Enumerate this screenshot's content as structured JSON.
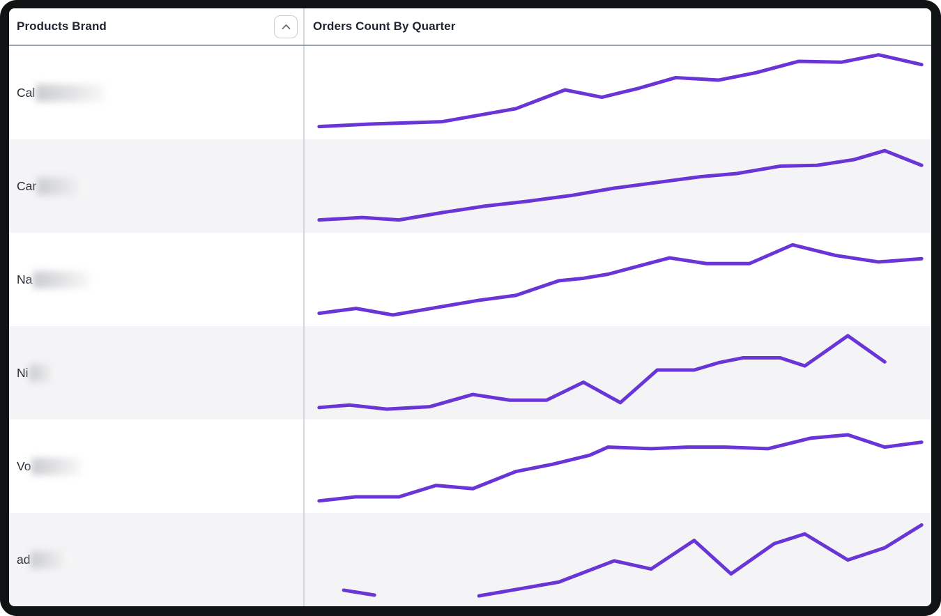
{
  "header": {
    "products_col": "Products Brand",
    "chart_col": "Orders Count By Quarter",
    "sort_button": {
      "icon": "chevron-up-icon",
      "state": "ascending"
    }
  },
  "rows": [
    {
      "brand_prefix": "Cal",
      "brand_redacted": true,
      "blur_width": 100
    },
    {
      "brand_prefix": "Car",
      "brand_redacted": true,
      "blur_width": 72
    },
    {
      "brand_prefix": "Na",
      "brand_redacted": true,
      "blur_width": 82
    },
    {
      "brand_prefix": "Ni",
      "brand_redacted": true,
      "blur_width": 40
    },
    {
      "brand_prefix": "Vo",
      "brand_redacted": true,
      "blur_width": 72
    },
    {
      "brand_prefix": "ad",
      "brand_redacted": true,
      "blur_width": 58
    }
  ],
  "colors": {
    "line": "#6935d6",
    "row_alt_bg": "#f4f4f6",
    "header_rule": "#9aa2ab",
    "column_divider": "#d4d7db",
    "frame": "#101314"
  },
  "chart_data": [
    {
      "type": "line",
      "row_label_prefix": "Cal",
      "x_unit": "quarter",
      "axes_hidden": true,
      "units": "relative-percent",
      "segments": [
        [
          [
            1,
            8
          ],
          [
            9,
            11
          ],
          [
            21,
            14
          ],
          [
            33,
            30
          ],
          [
            41,
            53
          ],
          [
            47,
            44
          ],
          [
            53,
            55
          ],
          [
            59,
            68
          ],
          [
            66,
            65
          ],
          [
            72,
            74
          ],
          [
            79,
            88
          ],
          [
            86,
            87
          ],
          [
            92,
            96
          ],
          [
            99,
            84
          ]
        ]
      ]
    },
    {
      "type": "line",
      "row_label_prefix": "Car",
      "x_unit": "quarter",
      "axes_hidden": true,
      "units": "relative-percent",
      "segments": [
        [
          [
            1,
            8
          ],
          [
            8,
            11
          ],
          [
            14,
            8
          ],
          [
            21,
            17
          ],
          [
            28,
            25
          ],
          [
            35,
            31
          ],
          [
            42,
            38
          ],
          [
            49,
            47
          ],
          [
            56,
            54
          ],
          [
            63,
            61
          ],
          [
            69,
            65
          ],
          [
            76,
            74
          ],
          [
            82,
            75
          ],
          [
            88,
            82
          ],
          [
            93,
            93
          ],
          [
            99,
            75
          ]
        ]
      ]
    },
    {
      "type": "line",
      "row_label_prefix": "Na",
      "x_unit": "quarter",
      "axes_hidden": true,
      "units": "relative-percent",
      "segments": [
        [
          [
            1,
            8
          ],
          [
            7,
            14
          ],
          [
            13,
            6
          ],
          [
            20,
            15
          ],
          [
            27,
            24
          ],
          [
            33,
            30
          ],
          [
            40,
            48
          ],
          [
            44,
            51
          ],
          [
            48,
            56
          ],
          [
            55,
            70
          ],
          [
            58,
            76
          ],
          [
            64,
            69
          ],
          [
            71,
            69
          ],
          [
            78,
            92
          ],
          [
            85,
            79
          ],
          [
            92,
            71
          ],
          [
            99,
            75
          ]
        ]
      ]
    },
    {
      "type": "line",
      "row_label_prefix": "Ni",
      "x_unit": "quarter",
      "axes_hidden": true,
      "units": "relative-percent",
      "segments": [
        [
          [
            1,
            7
          ],
          [
            6,
            10
          ],
          [
            12,
            5
          ],
          [
            19,
            8
          ],
          [
            26,
            23
          ],
          [
            32,
            16
          ],
          [
            38,
            16
          ],
          [
            44,
            38
          ],
          [
            50,
            13
          ],
          [
            56,
            53
          ],
          [
            62,
            53
          ],
          [
            66,
            62
          ],
          [
            70,
            68
          ],
          [
            76,
            68
          ],
          [
            80,
            58
          ],
          [
            87,
            95
          ],
          [
            93,
            63
          ]
        ]
      ]
    },
    {
      "type": "line",
      "row_label_prefix": "Vo",
      "x_unit": "quarter",
      "axes_hidden": true,
      "units": "relative-percent",
      "segments": [
        [
          [
            1,
            7
          ],
          [
            7,
            12
          ],
          [
            14,
            12
          ],
          [
            20,
            26
          ],
          [
            26,
            22
          ],
          [
            33,
            43
          ],
          [
            39,
            52
          ],
          [
            45,
            63
          ],
          [
            48,
            73
          ],
          [
            55,
            71
          ],
          [
            61,
            73
          ],
          [
            67,
            73
          ],
          [
            74,
            71
          ],
          [
            81,
            84
          ],
          [
            87,
            88
          ],
          [
            93,
            73
          ],
          [
            99,
            79
          ]
        ]
      ]
    },
    {
      "type": "line",
      "row_label_prefix": "ad",
      "x_unit": "quarter",
      "axes_hidden": true,
      "units": "relative-percent",
      "segments": [
        [
          [
            5,
            12
          ],
          [
            10,
            6
          ]
        ],
        [
          [
            27,
            5
          ],
          [
            40,
            22
          ],
          [
            49,
            48
          ],
          [
            55,
            38
          ],
          [
            62,
            73
          ],
          [
            68,
            32
          ],
          [
            75,
            69
          ],
          [
            80,
            81
          ],
          [
            87,
            49
          ],
          [
            93,
            64
          ],
          [
            99,
            92
          ]
        ]
      ]
    }
  ]
}
